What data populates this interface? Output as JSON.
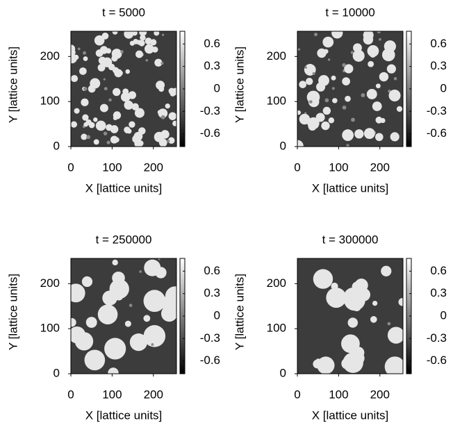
{
  "chart_data": [
    {
      "type": "heatmap",
      "title": "t = 5000",
      "x_label": "X [lattice units]",
      "y_label": "Y [lattice units]",
      "xlim": [
        0,
        256
      ],
      "ylim": [
        0,
        256
      ],
      "xticks": [
        0,
        100,
        200
      ],
      "yticks": [
        0,
        100,
        200
      ],
      "clim": [
        -0.77,
        0.77
      ],
      "cticks": [
        0.6,
        0.3,
        0,
        -0.3,
        -0.6
      ],
      "colormap": [
        "#000000",
        "#ffffff"
      ]
    },
    {
      "type": "heatmap",
      "title": "t = 10000",
      "x_label": "X [lattice units]",
      "y_label": "Y [lattice units]",
      "xlim": [
        0,
        256
      ],
      "ylim": [
        0,
        256
      ],
      "xticks": [
        0,
        100,
        200
      ],
      "yticks": [
        0,
        100,
        200
      ],
      "clim": [
        -0.77,
        0.77
      ],
      "cticks": [
        0.6,
        0.3,
        0,
        -0.3,
        -0.6
      ],
      "colormap": [
        "#000000",
        "#ffffff"
      ]
    },
    {
      "type": "heatmap",
      "title": "t = 250000",
      "x_label": "X [lattice units]",
      "y_label": "Y [lattice units]",
      "xlim": [
        0,
        256
      ],
      "ylim": [
        0,
        256
      ],
      "xticks": [
        0,
        100,
        200
      ],
      "yticks": [
        0,
        100,
        200
      ],
      "clim": [
        -0.77,
        0.77
      ],
      "cticks": [
        0.6,
        0.3,
        0,
        -0.3,
        -0.6
      ],
      "colormap": [
        "#000000",
        "#ffffff"
      ]
    },
    {
      "type": "heatmap",
      "title": "t = 300000",
      "x_label": "X [lattice units]",
      "y_label": "Y [lattice units]",
      "xlim": [
        0,
        256
      ],
      "ylim": [
        0,
        256
      ],
      "xticks": [
        0,
        100,
        200
      ],
      "yticks": [
        0,
        100,
        200
      ],
      "clim": [
        -0.77,
        0.77
      ],
      "cticks": [
        0.6,
        0.3,
        0,
        -0.3,
        -0.6
      ],
      "colormap": [
        "#000000",
        "#ffffff"
      ]
    }
  ]
}
